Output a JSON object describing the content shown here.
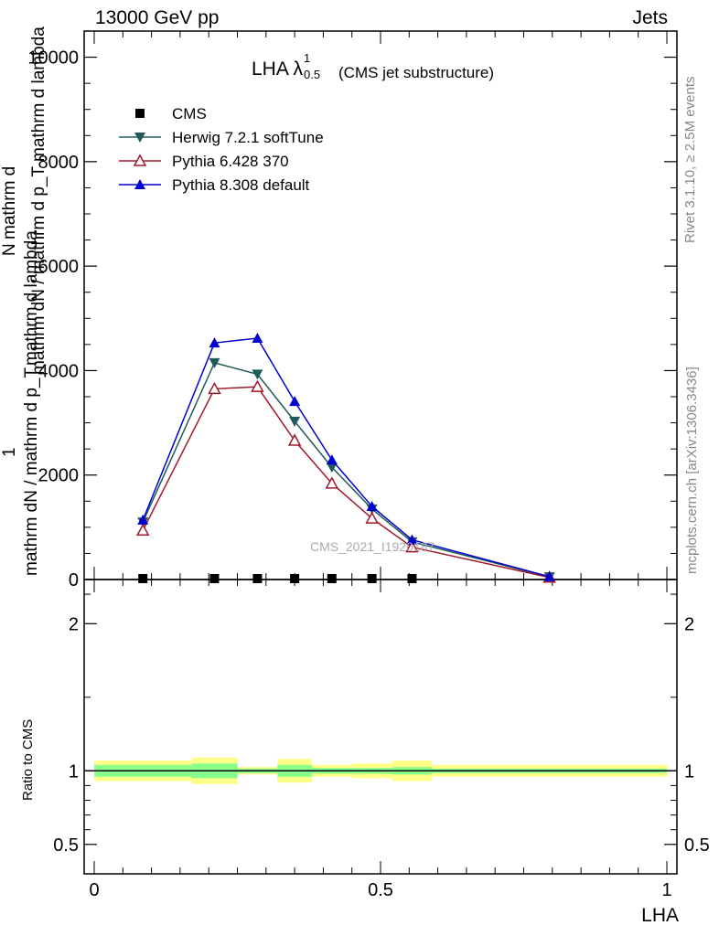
{
  "header": {
    "left": "13000 GeV pp",
    "right": "Jets"
  },
  "side": {
    "rivet": "Rivet 3.1.10, ≥ 2.5M events",
    "mcplots": "mcplots.cern.ch [arXiv:1306.3436]"
  },
  "chart_data": [
    {
      "type": "line",
      "title": "LHA",
      "title_lambda": "λ",
      "title_sup": "1",
      "title_sub": "0.5",
      "subtitle": "(CMS jet substructure)",
      "watermark": "CMS_2021_I1920187",
      "ylabel_top": "1",
      "ylabel_main": "mathrm dN / mathrm d p_T mathrm d lambda",
      "ylabel_den": "mathrm dN / mathrm d p_T",
      "ylabel_den2": "mathrm d lambda",
      "ylabel_frac_top": "mathrm d",
      "ylabel_frac_num": "N",
      "xlim": [
        0,
        1
      ],
      "ylim": [
        0,
        10500
      ],
      "yticks": [
        0,
        2000,
        4000,
        6000,
        8000,
        10000
      ],
      "ytick_labels": [
        "0",
        "2000",
        "4000",
        "6000",
        "8000",
        "10000"
      ],
      "legend_position": "top-left",
      "series": [
        {
          "name": "CMS",
          "marker": "square",
          "color": "#000000",
          "x": [
            0.085,
            0.21,
            0.285,
            0.35,
            0.415,
            0.485,
            0.555
          ],
          "y": [
            0,
            0,
            0,
            0,
            0,
            0,
            0
          ]
        },
        {
          "name": "Herwig 7.2.1 softTune",
          "marker": "triangle-down",
          "color": "#1e5a5a",
          "x": [
            0.085,
            0.21,
            0.285,
            0.35,
            0.415,
            0.485,
            0.555,
            0.795
          ],
          "y": [
            1100,
            4150,
            3930,
            3030,
            2150,
            1350,
            720,
            50
          ]
        },
        {
          "name": "Pythia 6.428 370",
          "marker": "triangle-up-open",
          "color": "#a0182a",
          "x": [
            0.085,
            0.21,
            0.285,
            0.35,
            0.415,
            0.485,
            0.555,
            0.795
          ],
          "y": [
            940,
            3650,
            3690,
            2660,
            1840,
            1170,
            620,
            40
          ]
        },
        {
          "name": "Pythia 8.308 default",
          "marker": "triangle-up",
          "color": "#0000d0",
          "x": [
            0.085,
            0.21,
            0.285,
            0.35,
            0.415,
            0.485,
            0.555,
            0.795
          ],
          "y": [
            1140,
            4530,
            4620,
            3410,
            2290,
            1400,
            760,
            55
          ]
        }
      ]
    },
    {
      "type": "area",
      "ylabel": "Ratio to CMS",
      "xlabel": "LHA",
      "xlim": [
        0,
        1
      ],
      "ylim": [
        0.3,
        2.3
      ],
      "xticks": [
        0,
        0.5,
        1
      ],
      "xtick_labels": [
        "0",
        "0.5",
        "1"
      ],
      "yticks": [
        0.5,
        1,
        2
      ],
      "ytick_labels": [
        "0.5",
        "1",
        "2"
      ],
      "bands": [
        {
          "x0": 0.0,
          "x1": 0.17,
          "inner": 0.04,
          "outer": 0.07
        },
        {
          "x0": 0.17,
          "x1": 0.25,
          "inner": 0.05,
          "outer": 0.09
        },
        {
          "x0": 0.25,
          "x1": 0.32,
          "inner": 0.015,
          "outer": 0.025
        },
        {
          "x0": 0.32,
          "x1": 0.38,
          "inner": 0.04,
          "outer": 0.08
        },
        {
          "x0": 0.38,
          "x1": 0.45,
          "inner": 0.02,
          "outer": 0.04
        },
        {
          "x0": 0.45,
          "x1": 0.52,
          "inner": 0.02,
          "outer": 0.05
        },
        {
          "x0": 0.52,
          "x1": 0.59,
          "inner": 0.025,
          "outer": 0.07
        },
        {
          "x0": 0.59,
          "x1": 1.0,
          "inner": 0.015,
          "outer": 0.04
        }
      ]
    }
  ]
}
